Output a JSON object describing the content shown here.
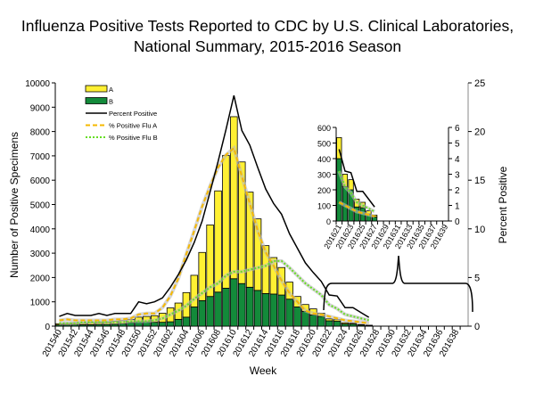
{
  "chart_data": {
    "type": "bar",
    "title_line1": "Influenza Positive Tests Reported to CDC by U.S. Clinical Laboratories,",
    "title_line2": "National Summary, 2015-2016 Season",
    "xlabel": "Week",
    "ylabel": "Number of Positive Specimens",
    "y2label": "Percent Positive",
    "ylim": [
      0,
      10000
    ],
    "y2lim": [
      0,
      25
    ],
    "yticks": [
      0,
      1000,
      2000,
      3000,
      4000,
      5000,
      6000,
      7000,
      8000,
      9000,
      10000
    ],
    "y2ticks": [
      0,
      5,
      10,
      15,
      20,
      25
    ],
    "grid": false,
    "legend_position": "top-left",
    "categories": [
      "201540",
      "201541",
      "201542",
      "201543",
      "201544",
      "201545",
      "201546",
      "201547",
      "201548",
      "201549",
      "201550",
      "201551",
      "201552",
      "201601",
      "201602",
      "201603",
      "201604",
      "201605",
      "201606",
      "201607",
      "201608",
      "201609",
      "201610",
      "201611",
      "201612",
      "201613",
      "201614",
      "201615",
      "201616",
      "201617",
      "201618",
      "201619",
      "201620",
      "201621",
      "201622",
      "201623",
      "201624",
      "201625",
      "201626",
      "201627",
      "201628",
      "201629",
      "201630",
      "201631",
      "201632",
      "201633",
      "201634",
      "201635",
      "201636",
      "201637",
      "201638",
      "201639"
    ],
    "xtick_labels": [
      "201540",
      "201542",
      "201544",
      "201546",
      "201548",
      "201550",
      "201552",
      "201602",
      "201604",
      "201606",
      "201608",
      "201610",
      "201612",
      "201614",
      "201616",
      "201618",
      "201620",
      "201622",
      "201624",
      "201626",
      "201628",
      "201630",
      "201632",
      "201634",
      "201636",
      "201638"
    ],
    "series": [
      {
        "name": "A",
        "kind": "bar-stacked",
        "color": "#FFF033",
        "values": [
          50,
          60,
          60,
          60,
          80,
          80,
          90,
          120,
          130,
          130,
          190,
          220,
          270,
          370,
          570,
          670,
          1010,
          1300,
          1980,
          2940,
          4160,
          5460,
          6660,
          5000,
          3910,
          2940,
          1970,
          1500,
          1130,
          700,
          430,
          280,
          250,
          135,
          80,
          65,
          50,
          35,
          20,
          13,
          null,
          null,
          null,
          null,
          null,
          null,
          null,
          null,
          null,
          null,
          null,
          null
        ]
      },
      {
        "name": "B",
        "kind": "bar-stacked",
        "color": "#138A3A",
        "values": [
          50,
          50,
          60,
          60,
          60,
          70,
          70,
          80,
          100,
          150,
          180,
          180,
          160,
          160,
          180,
          280,
          370,
          790,
          1050,
          1220,
          1400,
          1560,
          1950,
          1750,
          1600,
          1470,
          1340,
          1320,
          1280,
          1110,
          790,
          610,
          460,
          400,
          220,
          200,
          90,
          85,
          45,
          25,
          null,
          null,
          null,
          null,
          null,
          null,
          null,
          null,
          null,
          null,
          null,
          null
        ]
      },
      {
        "name": "Percent Positive",
        "kind": "line",
        "axis": "right",
        "color": "#000000",
        "values": [
          1.0,
          1.3,
          1.1,
          1.1,
          1.1,
          1.3,
          1.1,
          1.3,
          1.3,
          1.3,
          2.5,
          2.3,
          2.5,
          2.9,
          4.0,
          5.3,
          6.8,
          8.6,
          10.8,
          13.8,
          16.9,
          20.2,
          23.7,
          20.1,
          18.6,
          16.3,
          14.1,
          12.6,
          11.5,
          9.5,
          8.0,
          6.5,
          5.5,
          4.6,
          3.2,
          3.1,
          1.9,
          1.9,
          1.4,
          0.9,
          null,
          null,
          null,
          null,
          null,
          null,
          null,
          null,
          null,
          null,
          null,
          null
        ]
      },
      {
        "name": "% Positive Flu A",
        "kind": "line-dashed",
        "axis": "right",
        "color": "#F5B800",
        "values": [
          0.6,
          0.7,
          0.6,
          0.6,
          0.6,
          0.6,
          0.6,
          0.7,
          0.7,
          0.8,
          1.2,
          1.3,
          1.3,
          1.9,
          3.1,
          4.9,
          7.4,
          9.8,
          12.3,
          14.4,
          16.3,
          17.6,
          18.3,
          15.4,
          12.6,
          9.8,
          7.6,
          6.2,
          4.7,
          3.4,
          2.5,
          1.6,
          1.3,
          1.2,
          1.0,
          0.8,
          0.6,
          0.5,
          0.4,
          0.3,
          null,
          null,
          null,
          null,
          null,
          null,
          null,
          null,
          null,
          null,
          null,
          null
        ]
      },
      {
        "name": "% Positive Flu B",
        "kind": "line-dotted",
        "axis": "right",
        "color": "#66DD22",
        "values": [
          0.3,
          0.3,
          0.3,
          0.4,
          0.4,
          0.4,
          0.4,
          0.4,
          0.4,
          0.5,
          0.5,
          0.5,
          0.6,
          0.8,
          1.2,
          1.6,
          2.1,
          2.8,
          3.4,
          4.0,
          4.4,
          5.2,
          5.6,
          5.6,
          5.8,
          6.0,
          6.2,
          6.7,
          6.7,
          6.0,
          5.2,
          4.4,
          3.8,
          3.2,
          2.2,
          1.8,
          1.2,
          1.0,
          0.8,
          0.6,
          null,
          null,
          null,
          null,
          null,
          null,
          null,
          null,
          null,
          null,
          null,
          null
        ]
      }
    ],
    "inset": {
      "categories": [
        "201621",
        "201622",
        "201623",
        "201624",
        "201625",
        "201626",
        "201627",
        "201628",
        "201629",
        "201630",
        "201631",
        "201632",
        "201633",
        "201634",
        "201635",
        "201636",
        "201637",
        "201638",
        "201639"
      ],
      "xtick_labels": [
        "201621",
        "201623",
        "201625",
        "201627",
        "201629",
        "201631",
        "201633",
        "201635",
        "201637",
        "201639"
      ],
      "ylim": [
        0,
        600
      ],
      "yticks": [
        0,
        100,
        200,
        300,
        400,
        500,
        600
      ],
      "y2lim": [
        0,
        6
      ],
      "y2ticks": [
        0,
        1,
        2,
        3,
        4,
        5,
        6
      ]
    }
  }
}
